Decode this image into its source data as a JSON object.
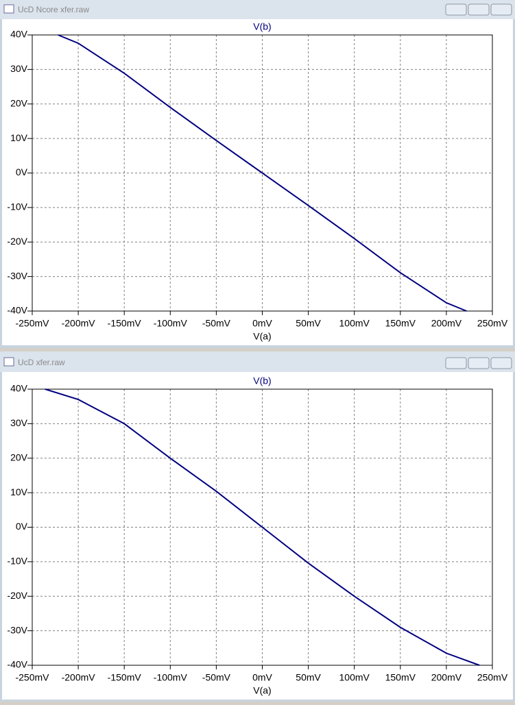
{
  "windows": [
    {
      "title": "UcD Ncore xfer.raw"
    },
    {
      "title": "UcD xfer.raw"
    }
  ],
  "chart_data": [
    {
      "type": "line",
      "x_label": "V(a)",
      "x": [
        -222,
        -200,
        -150,
        -100,
        -50,
        0,
        50,
        100,
        150,
        200,
        222
      ],
      "series": [
        {
          "name": "V(b)",
          "color": "#00007f",
          "values": [
            40,
            37.6,
            28.9,
            19,
            9.4,
            0,
            -9.4,
            -19,
            -28.9,
            -37.6,
            -40
          ]
        }
      ],
      "xlim": [
        -250,
        250
      ],
      "xticks": [
        {
          "value": -250,
          "label": "-250mV"
        },
        {
          "value": -200,
          "label": "-200mV"
        },
        {
          "value": -150,
          "label": "-150mV"
        },
        {
          "value": -100,
          "label": "-100mV"
        },
        {
          "value": -50,
          "label": "-50mV"
        },
        {
          "value": 0,
          "label": "0mV"
        },
        {
          "value": 50,
          "label": "50mV"
        },
        {
          "value": 100,
          "label": "100mV"
        },
        {
          "value": 150,
          "label": "150mV"
        },
        {
          "value": 200,
          "label": "200mV"
        },
        {
          "value": 250,
          "label": "250mV"
        }
      ],
      "ylim": [
        -40,
        40
      ],
      "yticks": [
        {
          "value": -40,
          "label": "-40V"
        },
        {
          "value": -30,
          "label": "-30V"
        },
        {
          "value": -20,
          "label": "-20V"
        },
        {
          "value": -10,
          "label": "-10V"
        },
        {
          "value": 0,
          "label": "0V"
        },
        {
          "value": 10,
          "label": "10V"
        },
        {
          "value": 20,
          "label": "20V"
        },
        {
          "value": 30,
          "label": "30V"
        },
        {
          "value": 40,
          "label": "40V"
        }
      ],
      "grid": true
    },
    {
      "type": "line",
      "x_label": "V(a)",
      "x": [
        -236,
        -200,
        -150,
        -100,
        -50,
        0,
        50,
        100,
        150,
        200,
        236
      ],
      "series": [
        {
          "name": "V(b)",
          "color": "#00007f",
          "values": [
            40,
            37,
            30,
            20,
            10.4,
            0,
            -10.4,
            -20,
            -29,
            -36.5,
            -40
          ]
        }
      ],
      "xlim": [
        -250,
        250
      ],
      "xticks": [
        {
          "value": -250,
          "label": "-250mV"
        },
        {
          "value": -200,
          "label": "-200mV"
        },
        {
          "value": -150,
          "label": "-150mV"
        },
        {
          "value": -100,
          "label": "-100mV"
        },
        {
          "value": -50,
          "label": "-50mV"
        },
        {
          "value": 0,
          "label": "0mV"
        },
        {
          "value": 50,
          "label": "50mV"
        },
        {
          "value": 100,
          "label": "100mV"
        },
        {
          "value": 150,
          "label": "150mV"
        },
        {
          "value": 200,
          "label": "200mV"
        },
        {
          "value": 250,
          "label": "250mV"
        }
      ],
      "ylim": [
        -40,
        40
      ],
      "yticks": [
        {
          "value": -40,
          "label": "-40V"
        },
        {
          "value": -30,
          "label": "-30V"
        },
        {
          "value": -20,
          "label": "-20V"
        },
        {
          "value": -10,
          "label": "-10V"
        },
        {
          "value": 0,
          "label": "0V"
        },
        {
          "value": 10,
          "label": "10V"
        },
        {
          "value": 20,
          "label": "20V"
        },
        {
          "value": 30,
          "label": "30V"
        },
        {
          "value": 40,
          "label": "40V"
        }
      ],
      "grid": true
    }
  ]
}
